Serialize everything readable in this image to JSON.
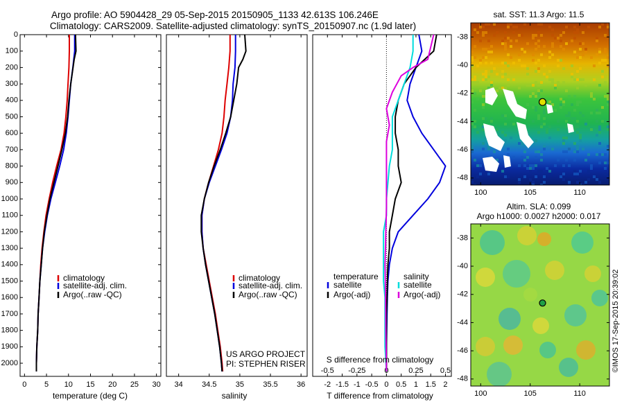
{
  "header": {
    "line1": "Argo profile: AO 5904428_29 05-Sep-2015 20150905_1133 42.613S 106.246E",
    "line2": "Climatology: CARS2009. Satellite-adjusted climatology: synTS_20150907.nc (1.9d later)"
  },
  "colors": {
    "climatology": "#dd0000",
    "satellite": "#0000dd",
    "argo": "#000000",
    "argo_salinity": "#dd00dd",
    "satellite_salinity": "#00dddd"
  },
  "chart_data": [
    {
      "type": "line",
      "panel": "temperature",
      "xlabel": "temperature (deg C)",
      "xlim": [
        -1,
        31
      ],
      "xticks": [
        "0",
        "5",
        "10",
        "15",
        "20",
        "25",
        "30"
      ],
      "ylim": [
        2080,
        0
      ],
      "yticks": [
        "0",
        "100",
        "200",
        "300",
        "400",
        "500",
        "600",
        "700",
        "800",
        "900",
        "1000",
        "1100",
        "1200",
        "1300",
        "1400",
        "1500",
        "1600",
        "1700",
        "1800",
        "1900",
        "2000"
      ],
      "legend": [
        "climatology",
        "satellite-adj. clim.",
        "Argo(..raw -QC)"
      ],
      "series": [
        {
          "name": "climatology",
          "color": "#dd0000",
          "points": [
            [
              10.2,
              0
            ],
            [
              10.2,
              100
            ],
            [
              10.1,
              200
            ],
            [
              9.9,
              300
            ],
            [
              9.7,
              400
            ],
            [
              9.4,
              500
            ],
            [
              9.0,
              600
            ],
            [
              8.3,
              700
            ],
            [
              7.3,
              800
            ],
            [
              6.4,
              900
            ],
            [
              5.6,
              1000
            ],
            [
              4.9,
              1100
            ],
            [
              4.4,
              1200
            ],
            [
              4.0,
              1300
            ],
            [
              3.7,
              1400
            ],
            [
              3.5,
              1500
            ],
            [
              3.3,
              1600
            ],
            [
              3.1,
              1700
            ],
            [
              3.0,
              1800
            ],
            [
              2.8,
              1900
            ],
            [
              2.7,
              2000
            ],
            [
              2.7,
              2050
            ]
          ]
        },
        {
          "name": "satellite-adj. clim.",
          "color": "#0000dd",
          "points": [
            [
              11.4,
              0
            ],
            [
              11.4,
              100
            ],
            [
              11.0,
              200
            ],
            [
              10.5,
              300
            ],
            [
              10.2,
              400
            ],
            [
              9.9,
              500
            ],
            [
              9.5,
              600
            ],
            [
              8.9,
              700
            ],
            [
              8.0,
              800
            ],
            [
              7.0,
              900
            ],
            [
              6.0,
              1000
            ],
            [
              5.2,
              1100
            ],
            [
              4.6,
              1200
            ],
            [
              4.1,
              1300
            ],
            [
              3.8,
              1400
            ],
            [
              3.5,
              1500
            ],
            [
              3.3,
              1600
            ],
            [
              3.1,
              1700
            ],
            [
              3.0,
              1800
            ],
            [
              2.8,
              1900
            ],
            [
              2.7,
              2000
            ],
            [
              2.7,
              2050
            ]
          ]
        },
        {
          "name": "Argo(..raw -QC)",
          "color": "#000000",
          "points": [
            [
              11.6,
              0
            ],
            [
              11.7,
              100
            ],
            [
              11.3,
              150
            ],
            [
              10.5,
              300
            ],
            [
              10.1,
              400
            ],
            [
              9.8,
              500
            ],
            [
              9.3,
              600
            ],
            [
              8.5,
              700
            ],
            [
              7.6,
              800
            ],
            [
              6.7,
              900
            ],
            [
              5.8,
              1000
            ],
            [
              5.1,
              1100
            ],
            [
              4.5,
              1200
            ],
            [
              4.1,
              1300
            ],
            [
              3.8,
              1400
            ],
            [
              3.5,
              1500
            ],
            [
              3.3,
              1600
            ],
            [
              3.1,
              1700
            ],
            [
              3.0,
              1800
            ],
            [
              2.8,
              1900
            ],
            [
              2.7,
              2000
            ],
            [
              2.7,
              2050
            ]
          ]
        }
      ]
    },
    {
      "type": "line",
      "panel": "salinity",
      "xlabel": "salinity",
      "xlim": [
        33.8,
        36.1
      ],
      "xticks": [
        "34",
        "34.5",
        "35",
        "35.5",
        "36"
      ],
      "ylim": [
        2080,
        0
      ],
      "legend": [
        "climatology",
        "satellite-adj. clim.",
        "Argo(..raw -QC)"
      ],
      "annotation": [
        "US ARGO PROJECT",
        "PI: STEPHEN RISER"
      ],
      "series": [
        {
          "name": "climatology",
          "color": "#dd0000",
          "points": [
            [
              34.84,
              0
            ],
            [
              34.84,
              100
            ],
            [
              34.82,
              200
            ],
            [
              34.79,
              300
            ],
            [
              34.76,
              400
            ],
            [
              34.74,
              500
            ],
            [
              34.71,
              600
            ],
            [
              34.65,
              700
            ],
            [
              34.57,
              800
            ],
            [
              34.49,
              900
            ],
            [
              34.42,
              1000
            ],
            [
              34.38,
              1100
            ],
            [
              34.38,
              1200
            ],
            [
              34.4,
              1300
            ],
            [
              34.45,
              1400
            ],
            [
              34.5,
              1500
            ],
            [
              34.55,
              1600
            ],
            [
              34.6,
              1700
            ],
            [
              34.64,
              1800
            ],
            [
              34.68,
              1900
            ],
            [
              34.71,
              2000
            ],
            [
              34.72,
              2050
            ]
          ]
        },
        {
          "name": "satellite-adj. clim.",
          "color": "#0000dd",
          "points": [
            [
              34.93,
              0
            ],
            [
              34.93,
              100
            ],
            [
              34.92,
              200
            ],
            [
              34.89,
              300
            ],
            [
              34.88,
              400
            ],
            [
              34.85,
              500
            ],
            [
              34.79,
              600
            ],
            [
              34.7,
              700
            ],
            [
              34.6,
              800
            ],
            [
              34.5,
              900
            ],
            [
              34.42,
              1000
            ],
            [
              34.38,
              1100
            ],
            [
              34.38,
              1200
            ],
            [
              34.4,
              1300
            ],
            [
              34.44,
              1400
            ],
            [
              34.49,
              1500
            ],
            [
              34.54,
              1600
            ],
            [
              34.59,
              1700
            ],
            [
              34.63,
              1800
            ],
            [
              34.67,
              1900
            ],
            [
              34.7,
              2000
            ],
            [
              34.71,
              2050
            ]
          ]
        },
        {
          "name": "Argo(..raw -QC)",
          "color": "#000000",
          "points": [
            [
              35.08,
              0
            ],
            [
              35.1,
              100
            ],
            [
              35.05,
              150
            ],
            [
              34.98,
              200
            ],
            [
              34.95,
              300
            ],
            [
              34.9,
              400
            ],
            [
              34.85,
              500
            ],
            [
              34.77,
              600
            ],
            [
              34.68,
              700
            ],
            [
              34.58,
              800
            ],
            [
              34.49,
              900
            ],
            [
              34.42,
              1000
            ],
            [
              34.37,
              1100
            ],
            [
              34.37,
              1200
            ],
            [
              34.4,
              1300
            ],
            [
              34.44,
              1400
            ],
            [
              34.49,
              1500
            ],
            [
              34.54,
              1600
            ],
            [
              34.59,
              1700
            ],
            [
              34.63,
              1800
            ],
            [
              34.67,
              1900
            ],
            [
              34.7,
              2000
            ],
            [
              34.71,
              2050
            ]
          ]
        }
      ]
    },
    {
      "type": "line",
      "panel": "difference",
      "xlabel": "T difference from climatology",
      "xlabel_top": "S difference from climatology",
      "xlim": [
        -2.5,
        2.2
      ],
      "xticks": [
        "-2",
        "-1.5",
        "-1",
        "-0.5",
        "0",
        "0.5",
        "1",
        "1.5",
        "2"
      ],
      "xticks_top": [
        "-0.5",
        "-0.25",
        "0",
        "0.25",
        "0.5"
      ],
      "ylim": [
        2080,
        0
      ],
      "legend_titles": [
        "temperature",
        "salinity"
      ],
      "legend": [
        "satellite",
        "Argo(-adj)",
        "satellite",
        "Argo(-adj)"
      ],
      "series": [
        {
          "name": "satellite",
          "group": "temperature",
          "color": "#0000dd",
          "points": [
            [
              1.1,
              0
            ],
            [
              1.2,
              100
            ],
            [
              1.0,
              200
            ],
            [
              0.8,
              300
            ],
            [
              0.7,
              400
            ],
            [
              0.9,
              500
            ],
            [
              1.2,
              600
            ],
            [
              1.6,
              700
            ],
            [
              2.0,
              800
            ],
            [
              1.8,
              900
            ],
            [
              1.4,
              1000
            ],
            [
              0.9,
              1100
            ],
            [
              0.4,
              1200
            ],
            [
              0.2,
              1300
            ],
            [
              0.1,
              1400
            ],
            [
              0.05,
              1500
            ],
            [
              0.03,
              1600
            ],
            [
              0.02,
              1700
            ],
            [
              0.01,
              1800
            ],
            [
              0.0,
              1900
            ],
            [
              0.0,
              2050
            ]
          ]
        },
        {
          "name": "Argo(-adj)",
          "group": "temperature",
          "color": "#000000",
          "points": [
            [
              1.7,
              0
            ],
            [
              1.6,
              100
            ],
            [
              1.0,
              200
            ],
            [
              0.6,
              300
            ],
            [
              0.4,
              400
            ],
            [
              0.3,
              500
            ],
            [
              0.3,
              600
            ],
            [
              0.4,
              700
            ],
            [
              0.4,
              800
            ],
            [
              0.5,
              900
            ],
            [
              0.3,
              1000
            ],
            [
              0.2,
              1100
            ],
            [
              0.1,
              1200
            ],
            [
              0.1,
              1300
            ],
            [
              0.05,
              1400
            ],
            [
              0.03,
              1500
            ],
            [
              0.02,
              1600
            ],
            [
              0.0,
              1700
            ],
            [
              0.0,
              1800
            ],
            [
              0.0,
              1900
            ],
            [
              0.0,
              2050
            ]
          ]
        },
        {
          "name": "satellite",
          "group": "salinity",
          "color": "#00dddd",
          "points": [
            [
              0.9,
              0
            ],
            [
              0.9,
              100
            ],
            [
              0.8,
              200
            ],
            [
              0.6,
              300
            ],
            [
              0.4,
              400
            ],
            [
              0.2,
              500
            ],
            [
              0.2,
              600
            ],
            [
              0.2,
              700
            ],
            [
              0.1,
              800
            ],
            [
              0.05,
              900
            ],
            [
              0.0,
              1000
            ],
            [
              0.0,
              1100
            ],
            [
              -0.1,
              1200
            ],
            [
              -0.1,
              1300
            ],
            [
              -0.1,
              1400
            ],
            [
              -0.1,
              1500
            ],
            [
              -0.05,
              1600
            ],
            [
              -0.05,
              1700
            ],
            [
              -0.05,
              1800
            ],
            [
              -0.05,
              1900
            ],
            [
              0.0,
              2050
            ]
          ]
        },
        {
          "name": "Argo(-adj)",
          "group": "salinity",
          "color": "#dd00dd",
          "points": [
            [
              1.6,
              0
            ],
            [
              1.4,
              150
            ],
            [
              0.9,
              200
            ],
            [
              0.5,
              250
            ],
            [
              0.2,
              350
            ],
            [
              0.0,
              450
            ],
            [
              0.1,
              550
            ],
            [
              0.0,
              650
            ],
            [
              0.0,
              750
            ],
            [
              0.0,
              850
            ],
            [
              0.0,
              950
            ],
            [
              0.0,
              1050
            ],
            [
              -0.02,
              1200
            ],
            [
              -0.05,
              1400
            ],
            [
              -0.03,
              1600
            ],
            [
              -0.02,
              1800
            ],
            [
              0.0,
              2050
            ]
          ]
        }
      ]
    },
    {
      "type": "heatmap",
      "panel": "sst-map",
      "title": "sat. SST: 11.3 Argo: 11.5",
      "xlim": [
        99,
        113
      ],
      "ylim": [
        -48.5,
        -37
      ],
      "xticks": [
        "100",
        "105",
        "110"
      ],
      "yticks": [
        "-38",
        "-40",
        "-42",
        "-44",
        "-46",
        "-48"
      ],
      "marker": {
        "lon": 106.246,
        "lat": -42.613
      }
    },
    {
      "type": "heatmap",
      "panel": "sla-map",
      "title": "Altim. SLA: 0.099",
      "subtitle": "Argo h1000: 0.0027 h2000: 0.017",
      "xlim": [
        99,
        113
      ],
      "ylim": [
        -48.5,
        -37
      ],
      "xticks": [
        "100",
        "105",
        "110"
      ],
      "yticks": [
        "-38",
        "-40",
        "-42",
        "-44",
        "-46",
        "-48"
      ],
      "marker": {
        "lon": 106.246,
        "lat": -42.613
      }
    }
  ],
  "footer_stamp": "©IMOS 17-Sep-2015 20:39:02"
}
